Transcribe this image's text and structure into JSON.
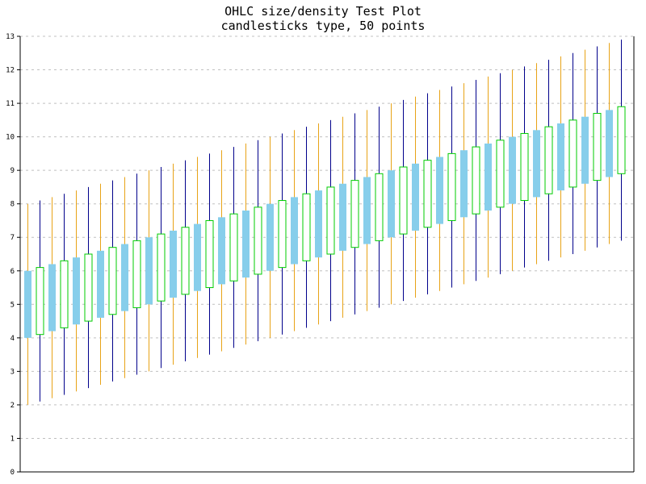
{
  "chart_data": {
    "type": "candlestick",
    "title": "OHLC size/density Test Plot",
    "subtitle": "candlesticks type, 50 points",
    "xlabel": "",
    "ylabel": "",
    "n_points": 50,
    "ylim": [
      0,
      13
    ],
    "y_ticks": [
      "0",
      "1",
      "2",
      "3",
      "4",
      "5",
      "6",
      "7",
      "8",
      "9",
      "10",
      "11",
      "12",
      "13"
    ],
    "grid": "horizontal-dashed",
    "legend": "none",
    "series": [
      {
        "open": [
          4.0,
          6.1,
          4.2,
          6.3,
          4.4,
          6.5,
          4.6,
          6.7,
          4.8,
          6.9,
          5.0,
          7.1,
          5.2,
          7.3,
          5.4,
          7.5,
          5.6,
          7.7,
          5.8,
          7.9,
          6.0,
          8.1,
          6.2,
          8.3,
          6.4,
          8.5,
          6.6,
          8.7,
          6.8,
          8.9,
          7.0,
          9.1,
          7.2,
          9.3,
          7.4,
          9.5,
          7.6,
          9.7,
          7.8,
          9.9,
          8.0,
          10.1,
          8.2,
          10.3,
          8.4,
          10.5,
          8.6,
          10.7,
          8.8,
          10.9
        ],
        "high": [
          8.0,
          8.1,
          8.2,
          8.3,
          8.4,
          8.5,
          8.6,
          8.7,
          8.8,
          8.9,
          9.0,
          9.1,
          9.2,
          9.3,
          9.4,
          9.5,
          9.6,
          9.7,
          9.8,
          9.9,
          10.0,
          10.1,
          10.2,
          10.3,
          10.4,
          10.5,
          10.6,
          10.7,
          10.8,
          10.9,
          11.0,
          11.1,
          11.2,
          11.3,
          11.4,
          11.5,
          11.6,
          11.7,
          11.8,
          11.9,
          12.0,
          12.1,
          12.2,
          12.3,
          12.4,
          12.5,
          12.6,
          12.7,
          12.8,
          12.9
        ],
        "low": [
          2.0,
          2.1,
          2.2,
          2.3,
          2.4,
          2.5,
          2.6,
          2.7,
          2.8,
          2.9,
          3.0,
          3.1,
          3.2,
          3.3,
          3.4,
          3.5,
          3.6,
          3.7,
          3.8,
          3.9,
          4.0,
          4.1,
          4.2,
          4.3,
          4.4,
          4.5,
          4.6,
          4.7,
          4.8,
          4.9,
          5.0,
          5.1,
          5.2,
          5.3,
          5.4,
          5.5,
          5.6,
          5.7,
          5.8,
          5.9,
          6.0,
          6.1,
          6.2,
          6.3,
          6.4,
          6.5,
          6.6,
          6.7,
          6.8,
          6.9
        ],
        "close": [
          6.0,
          4.1,
          6.2,
          4.3,
          6.4,
          4.5,
          6.6,
          4.7,
          6.8,
          4.9,
          7.0,
          5.1,
          7.2,
          5.3,
          7.4,
          5.5,
          7.6,
          5.7,
          7.8,
          5.9,
          8.0,
          6.1,
          8.2,
          6.3,
          8.4,
          6.5,
          8.6,
          6.7,
          8.8,
          6.9,
          9.0,
          7.1,
          9.2,
          7.3,
          9.4,
          7.5,
          9.6,
          7.7,
          9.8,
          7.9,
          10.0,
          8.1,
          10.2,
          8.3,
          10.4,
          8.5,
          10.6,
          8.7,
          10.8,
          8.9
        ]
      }
    ],
    "colors": {
      "up_body_fill": "#87ceeb",
      "down_body_fill": "#ffffff",
      "down_body_stroke": "#00cc00",
      "wick_up": "#e8a317",
      "wick_down": "#00008b",
      "grid": "#c0c0c0",
      "axis": "#000000",
      "background": "#ffffff"
    }
  }
}
